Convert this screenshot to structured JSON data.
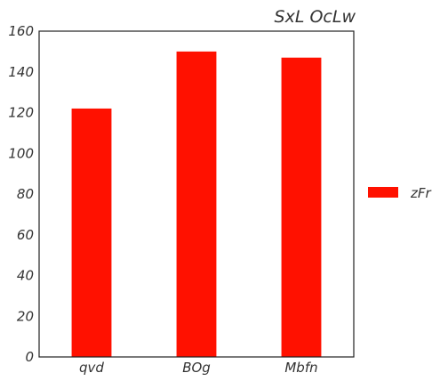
{
  "chart_data": {
    "type": "bar",
    "title": "SxL OcLw",
    "xlabel": "",
    "ylabel": "",
    "categories": [
      "qvd",
      "BOg",
      "Mbfn"
    ],
    "series": [
      {
        "name": "zFr",
        "values": [
          122,
          150,
          147
        ],
        "color": "#ff1100"
      }
    ],
    "ylim": [
      0,
      160
    ],
    "yticks": [
      0,
      20,
      40,
      60,
      80,
      100,
      120,
      140,
      160
    ],
    "grid": false,
    "legend_position": "right"
  }
}
